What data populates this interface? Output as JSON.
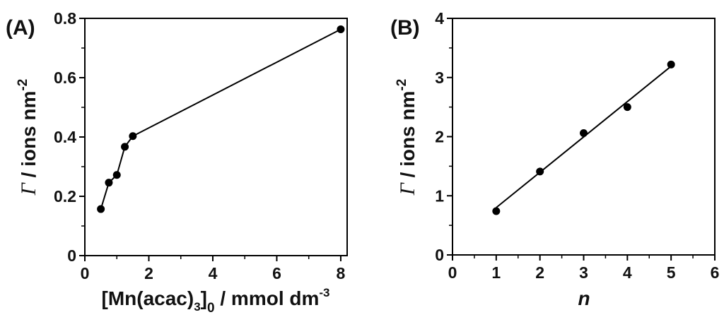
{
  "chart_data": [
    {
      "panel": "(A)",
      "type": "line",
      "title": "",
      "xlabel": "[Mn(acac)3]0 / mmol dm-3",
      "xlabel_parts": {
        "main": "[Mn(acac)",
        "sub1": "3",
        "mid": "]",
        "sub2": "0",
        "tail": " / mmol dm",
        "sup": "-3"
      },
      "ylabel": "Γ / ions nm-2",
      "ylabel_parts": {
        "symbol": "Γ",
        "main": " / ions nm",
        "sup": "-2"
      },
      "xlim": [
        0,
        8.2
      ],
      "ylim": [
        0,
        0.8
      ],
      "xticks": [
        0,
        2,
        4,
        6,
        8
      ],
      "xtick_labels": [
        "0",
        "2",
        "4",
        "6",
        "8"
      ],
      "yticks": [
        0,
        0.2,
        0.4,
        0.6,
        0.8
      ],
      "ytick_labels": [
        "0",
        "0.2",
        "0.4",
        "0.6",
        "0.8"
      ],
      "grid": false,
      "legend": null,
      "series": [
        {
          "name": "Γ",
          "style": "line+markers",
          "color": "#000000",
          "x": [
            0.5,
            0.75,
            1.0,
            1.25,
            1.5,
            8.0
          ],
          "y": [
            0.157,
            0.246,
            0.272,
            0.367,
            0.403,
            0.763
          ]
        }
      ]
    },
    {
      "panel": "(B)",
      "type": "scatter",
      "title": "",
      "xlabel": "n",
      "ylabel": "Γ / ions nm-2",
      "ylabel_parts": {
        "symbol": "Γ",
        "main": " / ions nm",
        "sup": "-2"
      },
      "xlim": [
        0,
        6
      ],
      "ylim": [
        0,
        4
      ],
      "xticks": [
        0,
        1,
        2,
        3,
        4,
        5,
        6
      ],
      "xtick_labels": [
        "0",
        "1",
        "2",
        "3",
        "4",
        "5",
        "6"
      ],
      "yticks": [
        0,
        1,
        2,
        3,
        4
      ],
      "ytick_labels": [
        "0",
        "1",
        "2",
        "3",
        "4"
      ],
      "grid": false,
      "legend": null,
      "series": [
        {
          "name": "data",
          "style": "markers",
          "color": "#000000",
          "x": [
            1,
            2,
            3,
            4,
            5
          ],
          "y": [
            0.74,
            1.41,
            2.06,
            2.5,
            3.22
          ]
        },
        {
          "name": "linear fit",
          "style": "line",
          "color": "#000000",
          "x": [
            1,
            5
          ],
          "y": [
            0.8,
            3.19
          ]
        }
      ]
    }
  ]
}
